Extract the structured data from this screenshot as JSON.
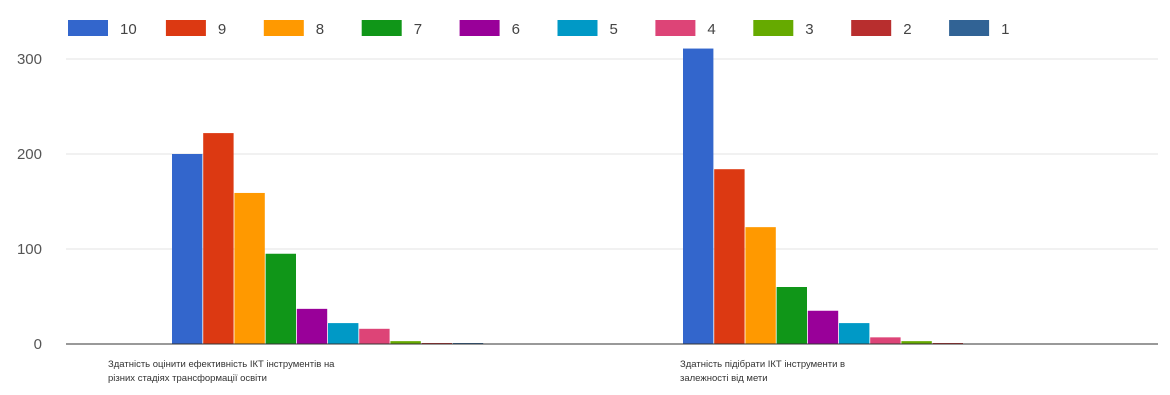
{
  "chart_data": {
    "type": "bar",
    "categories": [
      {
        "lines": [
          "Здатність оцінити ефективність ІКТ інструментів на",
          "різних стадіях трансформації освіти"
        ]
      },
      {
        "lines": [
          "Здатність підібрати ІКТ інструменти в",
          "залежності від мети"
        ]
      }
    ],
    "series": [
      {
        "name": "10",
        "color": "#3366cc",
        "values": [
          200,
          311
        ]
      },
      {
        "name": "9",
        "color": "#dc3912",
        "values": [
          222,
          184
        ]
      },
      {
        "name": "8",
        "color": "#ff9900",
        "values": [
          159,
          123
        ]
      },
      {
        "name": "7",
        "color": "#109618",
        "values": [
          95,
          60
        ]
      },
      {
        "name": "6",
        "color": "#990099",
        "values": [
          37,
          35
        ]
      },
      {
        "name": "5",
        "color": "#0099c6",
        "values": [
          22,
          22
        ]
      },
      {
        "name": "4",
        "color": "#dd4477",
        "values": [
          16,
          7
        ]
      },
      {
        "name": "3",
        "color": "#66aa00",
        "values": [
          3,
          3
        ]
      },
      {
        "name": "2",
        "color": "#b82e2e",
        "values": [
          1,
          1
        ]
      },
      {
        "name": "1",
        "color": "#316395",
        "values": [
          1,
          0
        ]
      }
    ],
    "yticks": [
      "0",
      "100",
      "200",
      "300"
    ],
    "ylim": [
      0,
      300
    ],
    "grid": true,
    "legend_position": "top"
  }
}
